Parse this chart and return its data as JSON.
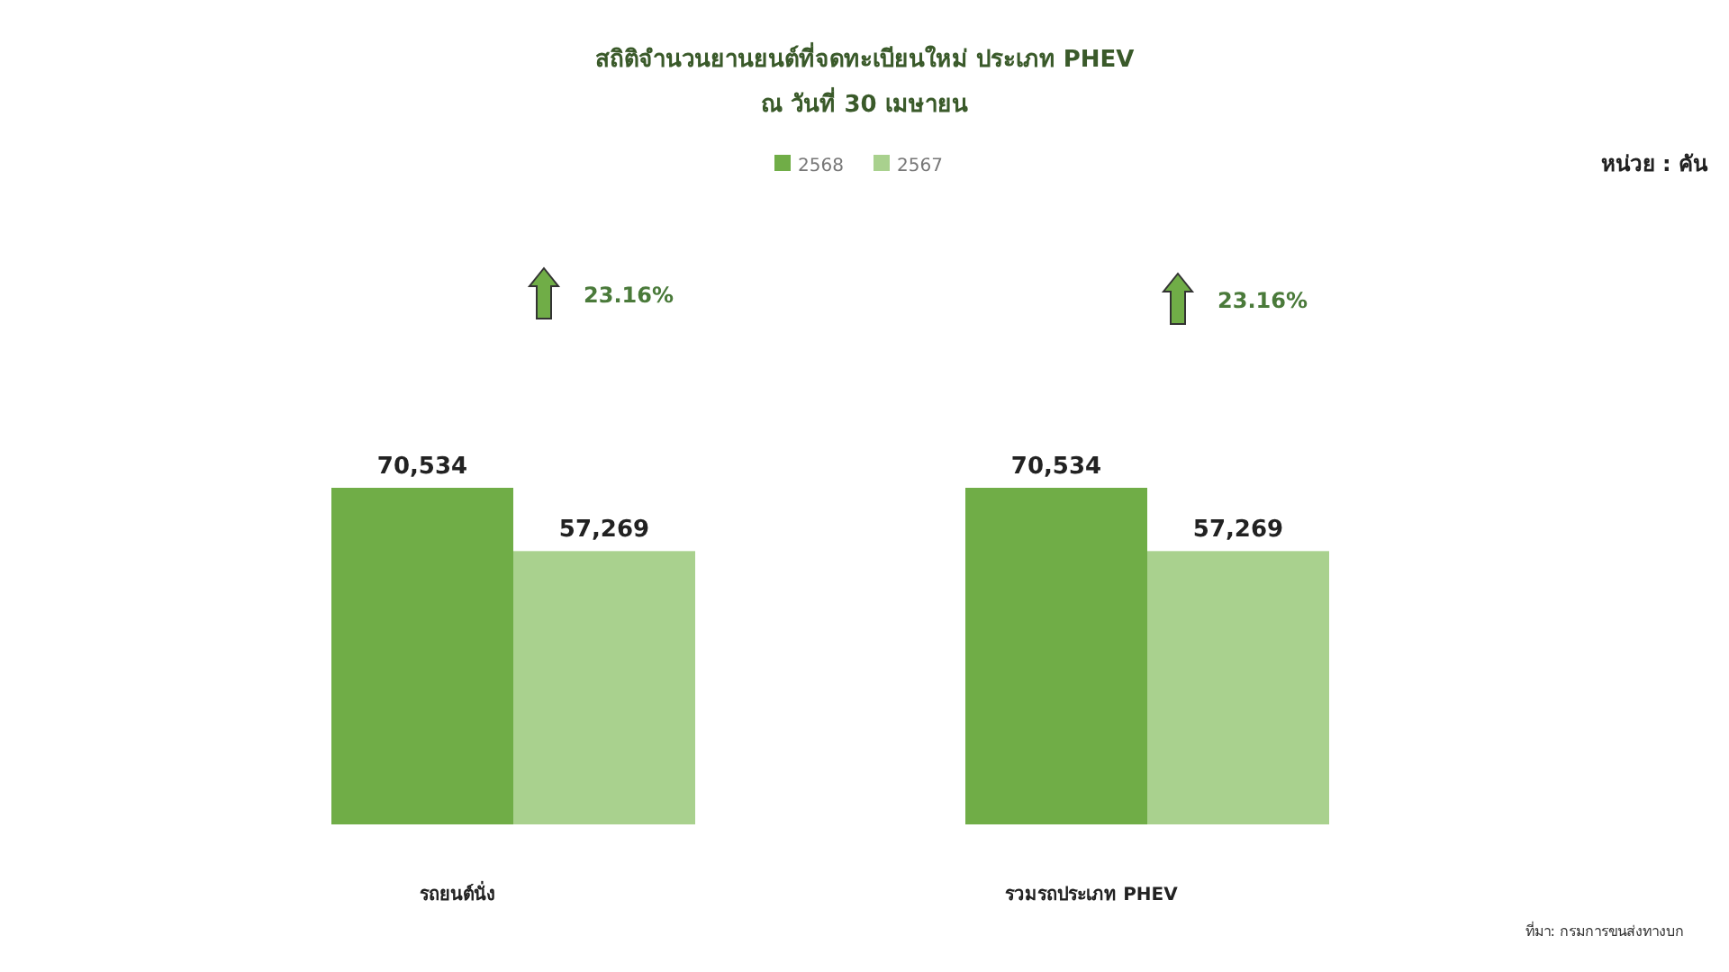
{
  "chart_data": {
    "type": "bar",
    "title": "สถิติจำนวนยานยนต์ที่จดทะเบียนใหม่ ประเภท PHEV",
    "subtitle": "ณ วันที่ 30 เมษายน",
    "categories": [
      "รถยนต์นั่ง",
      "รวมรถประเภท PHEV"
    ],
    "series": [
      {
        "name": "2568",
        "color": "#70ad47",
        "values": [
          70534,
          70534
        ],
        "value_labels": [
          "70,534",
          "70,534"
        ]
      },
      {
        "name": "2567",
        "color": "#a9d18e",
        "values": [
          57269,
          57269
        ],
        "value_labels": [
          "57,269",
          "57,269"
        ]
      }
    ],
    "legend": "top",
    "annotations": [
      "23.16%",
      "23.16%",
      "หน่วย : คัน",
      "ที่มา: กรมการขนส่งทางบก"
    ]
  }
}
